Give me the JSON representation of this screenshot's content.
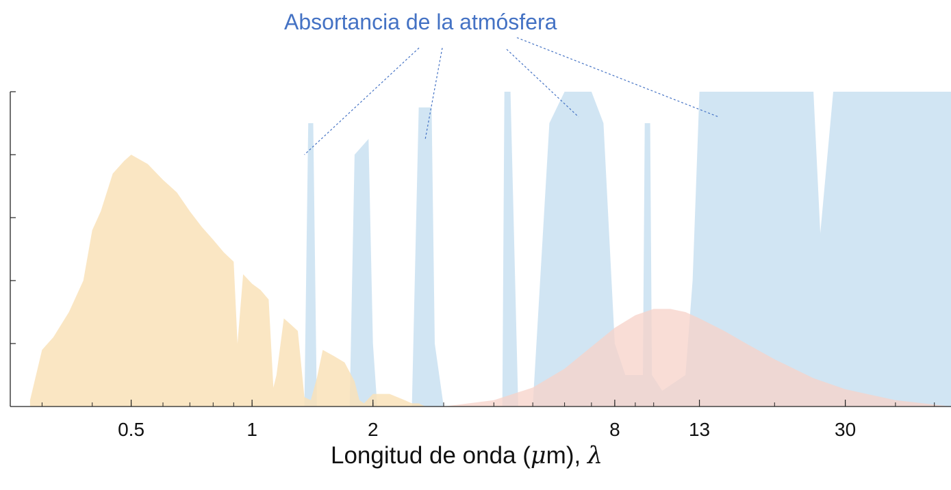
{
  "chart_data": {
    "type": "area",
    "title": "",
    "annotation": "Absortancia de la atmósfera",
    "xlabel": {
      "prefix": "Longitud de onda (",
      "mu": "μ",
      "unit_tail": "m), ",
      "lambda": "λ"
    },
    "ylabel": "",
    "x_scale": "log",
    "xlim": [
      0.25,
      55
    ],
    "ylim": [
      0,
      1
    ],
    "x_tick_labels": [
      "0.5",
      "1",
      "2",
      "8",
      "13",
      "30"
    ],
    "x_tick_values": [
      0.5,
      1,
      2,
      8,
      13,
      30
    ],
    "y_tick_count": 5,
    "grid": false,
    "legend": "none",
    "colors": {
      "solar": "#F9E2B8",
      "absorptance": "#C6DFF0",
      "earth": "#F7D2C8",
      "overlap": "#DCD6D4",
      "annotation": "#4472C4",
      "axis": "#222222"
    },
    "series": [
      {
        "key": "solar",
        "x": [
          0.28,
          0.3,
          0.32,
          0.35,
          0.38,
          0.4,
          0.42,
          0.45,
          0.48,
          0.5,
          0.55,
          0.6,
          0.65,
          0.7,
          0.75,
          0.8,
          0.85,
          0.9,
          0.92,
          0.95,
          1.0,
          1.05,
          1.1,
          1.13,
          1.15,
          1.2,
          1.25,
          1.3,
          1.35,
          1.4,
          1.45,
          1.5,
          1.6,
          1.7,
          1.8,
          1.85,
          1.9,
          2.0,
          2.1,
          2.2,
          2.3,
          2.4,
          2.5,
          2.6,
          2.7
        ],
        "values": [
          0.02,
          0.18,
          0.22,
          0.3,
          0.4,
          0.56,
          0.62,
          0.74,
          0.78,
          0.8,
          0.77,
          0.72,
          0.68,
          0.62,
          0.57,
          0.53,
          0.49,
          0.46,
          0.2,
          0.42,
          0.39,
          0.37,
          0.34,
          0.06,
          0.1,
          0.28,
          0.26,
          0.24,
          0.03,
          0.02,
          0.09,
          0.18,
          0.16,
          0.14,
          0.08,
          0.02,
          0.01,
          0.04,
          0.04,
          0.04,
          0.03,
          0.02,
          0.01,
          0.01,
          0.0
        ]
      },
      {
        "key": "earth",
        "x": [
          3.0,
          4.0,
          5.0,
          6.0,
          7.0,
          8.0,
          9.0,
          10.0,
          11.0,
          12.0,
          13.0,
          15.0,
          17.0,
          20.0,
          25.0,
          30.0,
          40.0,
          55.0
        ],
        "values": [
          0.0,
          0.02,
          0.06,
          0.12,
          0.19,
          0.25,
          0.29,
          0.31,
          0.31,
          0.3,
          0.28,
          0.24,
          0.2,
          0.15,
          0.09,
          0.055,
          0.02,
          0.0
        ]
      },
      {
        "key": "absorptance",
        "x": [
          0.25,
          1.35,
          1.38,
          1.42,
          1.45,
          1.75,
          1.8,
          1.95,
          2.0,
          2.05,
          2.5,
          2.6,
          2.8,
          2.85,
          3.0,
          3.3,
          3.5,
          4.2,
          4.25,
          4.4,
          4.6,
          5.0,
          5.5,
          6.0,
          6.5,
          7.0,
          7.5,
          8.0,
          8.5,
          9.4,
          9.5,
          9.8,
          9.9,
          10.5,
          12.0,
          12.5,
          13.0,
          14.0,
          16.0,
          20.0,
          25.0,
          26.0,
          28.0,
          30.0,
          55.0
        ],
        "values": [
          0.0,
          0.0,
          0.9,
          0.9,
          0.0,
          0.0,
          0.8,
          0.85,
          0.2,
          0.0,
          0.0,
          0.95,
          0.95,
          0.2,
          0.0,
          0.0,
          0.0,
          0.0,
          1.0,
          1.0,
          0.0,
          0.0,
          0.9,
          1.0,
          1.0,
          1.0,
          0.9,
          0.2,
          0.1,
          0.1,
          0.9,
          0.9,
          0.1,
          0.05,
          0.1,
          0.4,
          1.0,
          1.0,
          1.0,
          1.0,
          1.0,
          0.55,
          1.0,
          1.0,
          1.0
        ]
      }
    ]
  }
}
